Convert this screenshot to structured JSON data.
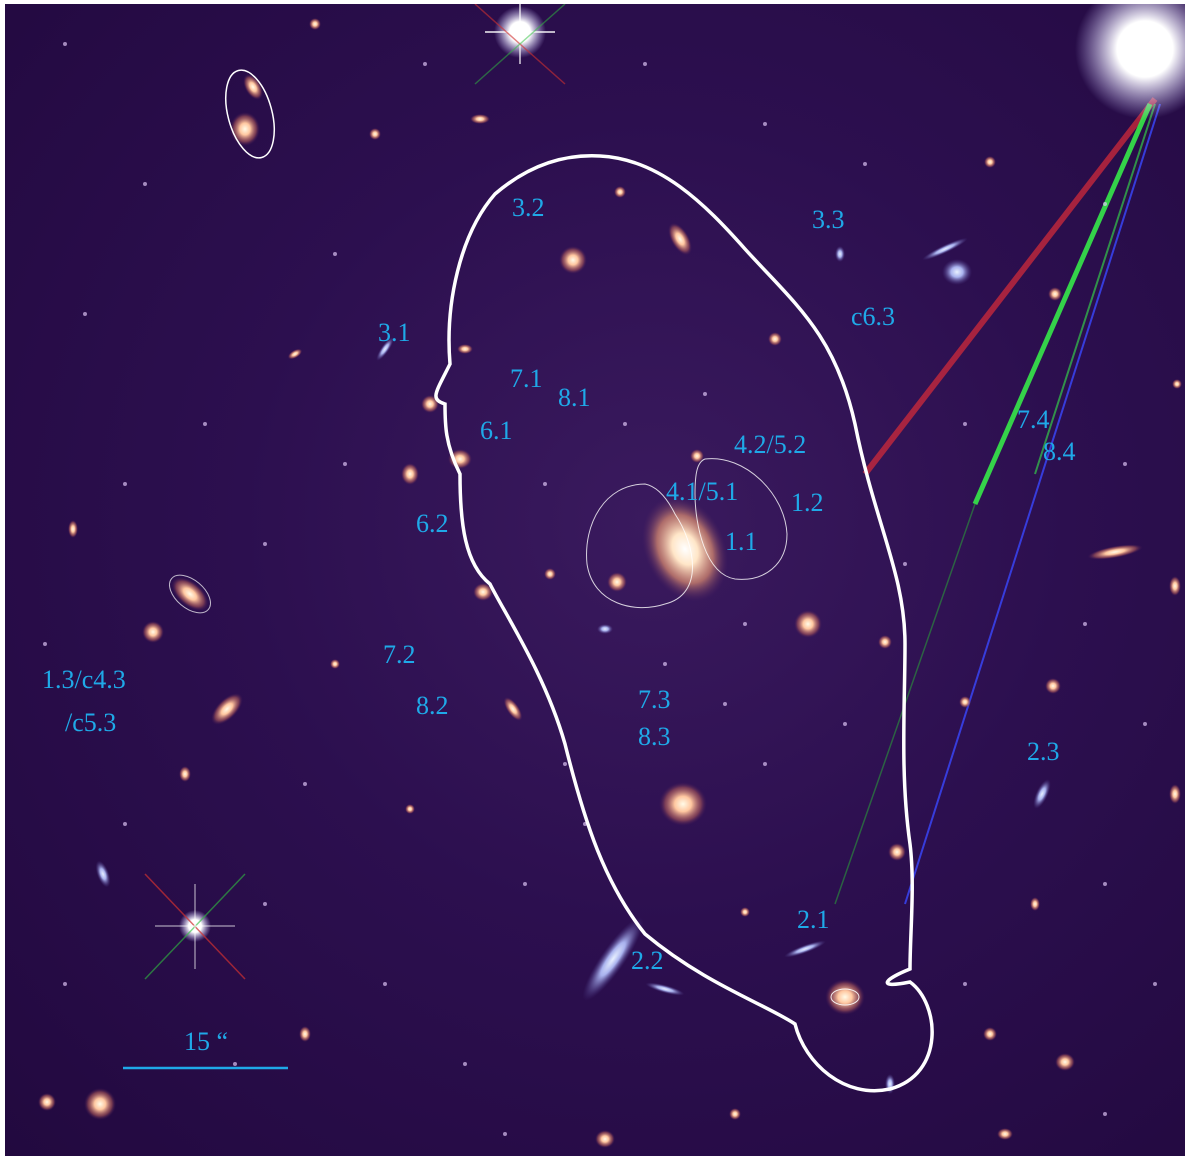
{
  "image_labels": {
    "l3_2": "3.2",
    "l3_3": "3.3",
    "lc6_3": "c6.3",
    "l3_1": "3.1",
    "l7_1": "7.1",
    "l8_1": "8.1",
    "l6_1": "6.1",
    "l4_2_5_2": "4.2/5.2",
    "l7_4": "7.4",
    "l8_4": "8.4",
    "l4_1_5_1": "4.1/5.1",
    "l1_2": "1.2",
    "l1_1": "1.1",
    "l6_2": "6.2",
    "l7_2": "7.2",
    "l1_3": "1.3/c4.3",
    "lc5_3": "/c5.3",
    "l8_2": "8.2",
    "l7_3": "7.3",
    "l8_3": "8.3",
    "l2_3": "2.3",
    "l2_1": "2.1",
    "l2_2": "2.2"
  },
  "scale_bar": {
    "label": "15 “"
  },
  "colors": {
    "label": "#1fa9e8",
    "critical_curve": "#ffffff",
    "sky_background": "#2c0f4f"
  }
}
